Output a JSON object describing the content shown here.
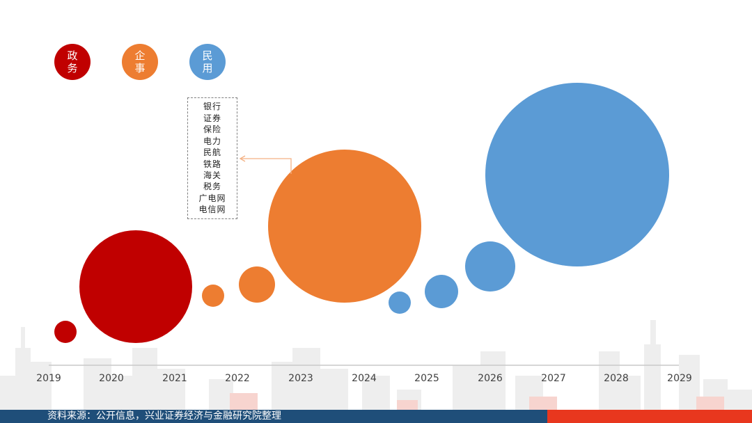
{
  "legend": [
    {
      "label": "政务",
      "color": "#c00000"
    },
    {
      "label": "企事",
      "color": "#ed7d31"
    },
    {
      "label": "民用",
      "color": "#5b9bd5"
    }
  ],
  "callout_items": [
    "银行",
    "证券",
    "保险",
    "电力",
    "民航",
    "铁路",
    "海关",
    "税务",
    "广电网",
    "电信网"
  ],
  "timeline_years": [
    "2019",
    "2020",
    "2021",
    "2022",
    "2023",
    "2024",
    "2025",
    "2026",
    "2027",
    "2028",
    "2029"
  ],
  "bubbles": [
    {
      "category": "政务",
      "relative_size": 1
    },
    {
      "category": "政务",
      "relative_size": 5
    },
    {
      "category": "企事",
      "relative_size": 1
    },
    {
      "category": "企事",
      "relative_size": 1.7
    },
    {
      "category": "企事",
      "relative_size": 7
    },
    {
      "category": "民用",
      "relative_size": 1
    },
    {
      "category": "民用",
      "relative_size": 1.5
    },
    {
      "category": "民用",
      "relative_size": 2.2
    },
    {
      "category": "民用",
      "relative_size": 8.2
    }
  ],
  "footer": {
    "source": "资料来源：公开信息，兴业证券经济与金融研究院整理"
  }
}
